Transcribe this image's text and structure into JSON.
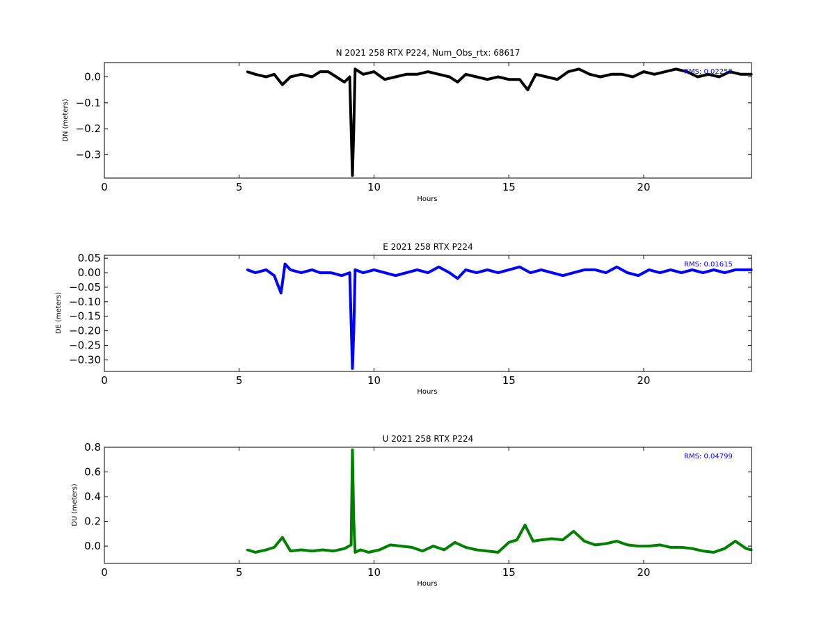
{
  "chart_data": [
    {
      "type": "scatter",
      "title": "N 2021 258 RTX  P224, Num_Obs_rtx: 68617",
      "xlabel": "Hours",
      "ylabel": "DN (meters)",
      "xlim": [
        0,
        24
      ],
      "ylim": [
        -0.39,
        0.055
      ],
      "xticks": [
        0,
        5,
        10,
        15,
        20
      ],
      "yticks": [
        0.0,
        -0.1,
        -0.2,
        -0.3
      ],
      "ytick_labels": [
        "0.0",
        "−0.1",
        "−0.2",
        "−0.3"
      ],
      "grid": false,
      "color": "#000000",
      "annotation": "RMS:  0.02258",
      "series": [
        {
          "x": [
            5.3,
            5.6,
            6.0,
            6.3,
            6.6,
            6.9,
            7.3,
            7.7,
            8.0,
            8.3,
            8.6,
            8.9,
            9.1,
            9.2,
            9.25,
            9.3,
            9.6,
            10.0,
            10.4,
            10.8,
            11.2,
            11.6,
            12.0,
            12.4,
            12.8,
            13.1,
            13.4,
            13.8,
            14.2,
            14.6,
            15.0,
            15.4,
            15.7,
            16.0,
            16.4,
            16.8,
            17.2,
            17.6,
            18.0,
            18.4,
            18.8,
            19.2,
            19.6,
            20.0,
            20.4,
            20.8,
            21.2,
            21.6,
            22.0,
            22.4,
            22.8,
            23.2,
            23.6,
            24.0
          ],
          "y": [
            0.02,
            0.01,
            0.0,
            0.01,
            -0.03,
            0.0,
            0.01,
            0.0,
            0.02,
            0.02,
            0.0,
            -0.02,
            0.0,
            -0.38,
            -0.2,
            0.03,
            0.01,
            0.02,
            -0.01,
            0.0,
            0.01,
            0.01,
            0.02,
            0.01,
            0.0,
            -0.02,
            0.01,
            0.0,
            -0.01,
            0.0,
            -0.01,
            -0.01,
            -0.05,
            0.01,
            0.0,
            -0.01,
            0.02,
            0.03,
            0.01,
            0.0,
            0.01,
            0.01,
            0.0,
            0.02,
            0.01,
            0.02,
            0.03,
            0.02,
            0.0,
            0.01,
            0.0,
            0.02,
            0.01,
            0.01
          ]
        }
      ]
    },
    {
      "type": "scatter",
      "title": "E 2021 258 RTX  P224",
      "xlabel": "Hours",
      "ylabel": "DE (meters)",
      "xlim": [
        0,
        24
      ],
      "ylim": [
        -0.34,
        0.06
      ],
      "xticks": [
        0,
        5,
        10,
        15,
        20
      ],
      "yticks": [
        0.05,
        0.0,
        -0.05,
        -0.1,
        -0.15,
        -0.2,
        -0.25,
        -0.3
      ],
      "ytick_labels": [
        "0.05",
        "0.00",
        "−0.05",
        "−0.10",
        "−0.15",
        "−0.20",
        "−0.25",
        "−0.30"
      ],
      "grid": false,
      "color": "#0000ff",
      "annotation": "RMS:  0.01615",
      "series": [
        {
          "x": [
            5.3,
            5.6,
            6.0,
            6.3,
            6.55,
            6.7,
            6.9,
            7.3,
            7.7,
            8.0,
            8.4,
            8.8,
            9.1,
            9.2,
            9.25,
            9.3,
            9.6,
            10.0,
            10.4,
            10.8,
            11.2,
            11.6,
            12.0,
            12.4,
            12.8,
            13.1,
            13.4,
            13.8,
            14.2,
            14.6,
            15.0,
            15.4,
            15.8,
            16.2,
            16.6,
            17.0,
            17.4,
            17.8,
            18.2,
            18.6,
            19.0,
            19.4,
            19.8,
            20.2,
            20.6,
            21.0,
            21.4,
            21.8,
            22.2,
            22.6,
            23.0,
            23.4,
            23.8,
            24.0
          ],
          "y": [
            0.01,
            0.0,
            0.01,
            -0.01,
            -0.07,
            0.03,
            0.01,
            0.0,
            0.01,
            0.0,
            0.0,
            -0.01,
            0.0,
            -0.33,
            -0.2,
            0.01,
            0.0,
            0.01,
            0.0,
            -0.01,
            0.0,
            0.01,
            0.0,
            0.02,
            0.0,
            -0.02,
            0.01,
            0.0,
            0.01,
            0.0,
            0.01,
            0.02,
            0.0,
            0.01,
            0.0,
            -0.01,
            0.0,
            0.01,
            0.01,
            0.0,
            0.02,
            0.0,
            -0.01,
            0.01,
            0.0,
            0.01,
            0.0,
            0.01,
            0.0,
            0.01,
            0.0,
            0.01,
            0.01,
            0.01
          ]
        }
      ]
    },
    {
      "type": "scatter",
      "title": "U 2021 258 RTX  P224",
      "xlabel": "Hours",
      "ylabel": "DU (meters)",
      "xlim": [
        0,
        24
      ],
      "ylim": [
        -0.14,
        0.8
      ],
      "xticks": [
        0,
        5,
        10,
        15,
        20
      ],
      "yticks": [
        0.8,
        0.6,
        0.4,
        0.2,
        0.0
      ],
      "ytick_labels": [
        "0.8",
        "0.6",
        "0.4",
        "0.2",
        "0.0"
      ],
      "grid": false,
      "color": "#008000",
      "annotation": "RMS:  0.04799",
      "series": [
        {
          "x": [
            5.3,
            5.6,
            6.0,
            6.3,
            6.6,
            6.9,
            7.3,
            7.7,
            8.1,
            8.5,
            8.9,
            9.15,
            9.2,
            9.25,
            9.3,
            9.5,
            9.8,
            10.2,
            10.6,
            11.0,
            11.4,
            11.8,
            12.2,
            12.6,
            13.0,
            13.4,
            13.8,
            14.2,
            14.6,
            15.0,
            15.3,
            15.6,
            15.9,
            16.2,
            16.6,
            17.0,
            17.4,
            17.8,
            18.2,
            18.6,
            19.0,
            19.4,
            19.8,
            20.2,
            20.6,
            21.0,
            21.4,
            21.8,
            22.2,
            22.6,
            23.0,
            23.4,
            23.8,
            24.0
          ],
          "y": [
            -0.03,
            -0.05,
            -0.03,
            -0.01,
            0.07,
            -0.04,
            -0.03,
            -0.04,
            -0.03,
            -0.04,
            -0.02,
            0.01,
            0.78,
            0.2,
            -0.05,
            -0.03,
            -0.05,
            -0.03,
            0.01,
            0.0,
            -0.01,
            -0.04,
            0.0,
            -0.03,
            0.03,
            -0.01,
            -0.03,
            -0.04,
            -0.05,
            0.03,
            0.05,
            0.17,
            0.04,
            0.05,
            0.06,
            0.05,
            0.12,
            0.04,
            0.01,
            0.02,
            0.04,
            0.01,
            0.0,
            0.0,
            0.01,
            -0.01,
            -0.01,
            -0.02,
            -0.04,
            -0.05,
            -0.02,
            0.04,
            -0.02,
            -0.03
          ]
        }
      ]
    }
  ]
}
